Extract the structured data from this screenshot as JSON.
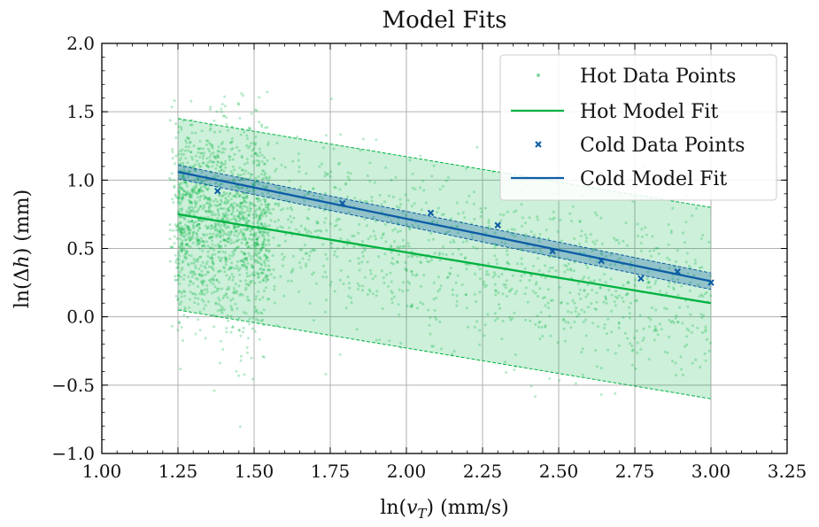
{
  "chart_data": {
    "type": "scatter",
    "title": "Model Fits",
    "xlabel": "ln(v_T) (mm/s)",
    "ylabel": "ln(Δh) (mm)",
    "xlim": [
      1.0,
      3.25
    ],
    "ylim": [
      -1.0,
      2.0
    ],
    "xticks": [
      "1.00",
      "1.25",
      "1.50",
      "1.75",
      "2.00",
      "2.25",
      "2.50",
      "2.75",
      "3.00",
      "3.25"
    ],
    "yticks": [
      "−1.0",
      "−0.5",
      "0.0",
      "0.5",
      "1.0",
      "1.5",
      "2.0"
    ],
    "grid": true,
    "legend_position": "top-right",
    "colors": {
      "hot": "#00b241",
      "cold": "#0c5da5"
    },
    "hot_fit": {
      "x": [
        1.25,
        3.0
      ],
      "y": [
        0.75,
        0.1
      ],
      "band_upper": [
        1.45,
        0.8
      ],
      "band_lower": [
        0.05,
        -0.6
      ]
    },
    "cold_fit": {
      "x": [
        1.25,
        3.0
      ],
      "y": [
        1.06,
        0.26
      ],
      "band_upper": [
        1.11,
        0.32
      ],
      "band_lower": [
        1.01,
        0.2
      ]
    },
    "cold_points": {
      "x": [
        1.38,
        1.79,
        2.08,
        2.3,
        2.48,
        2.64,
        2.77,
        2.89,
        3.0
      ],
      "y": [
        0.92,
        0.83,
        0.76,
        0.67,
        0.48,
        0.41,
        0.28,
        0.33,
        0.25
      ]
    },
    "hot_points_summary": {
      "count": 4000,
      "x_range": [
        1.22,
        3.0
      ],
      "dense_region_x": [
        1.25,
        1.55
      ],
      "y_mean_line": "hot_fit",
      "y_spread": 0.35
    },
    "legend": [
      {
        "key": "hot-points",
        "label": "Hot Data Points"
      },
      {
        "key": "hot-fit",
        "label": "Hot Model Fit"
      },
      {
        "key": "cold-points",
        "label": "Cold Data Points"
      },
      {
        "key": "cold-fit",
        "label": "Cold Model Fit"
      }
    ]
  }
}
